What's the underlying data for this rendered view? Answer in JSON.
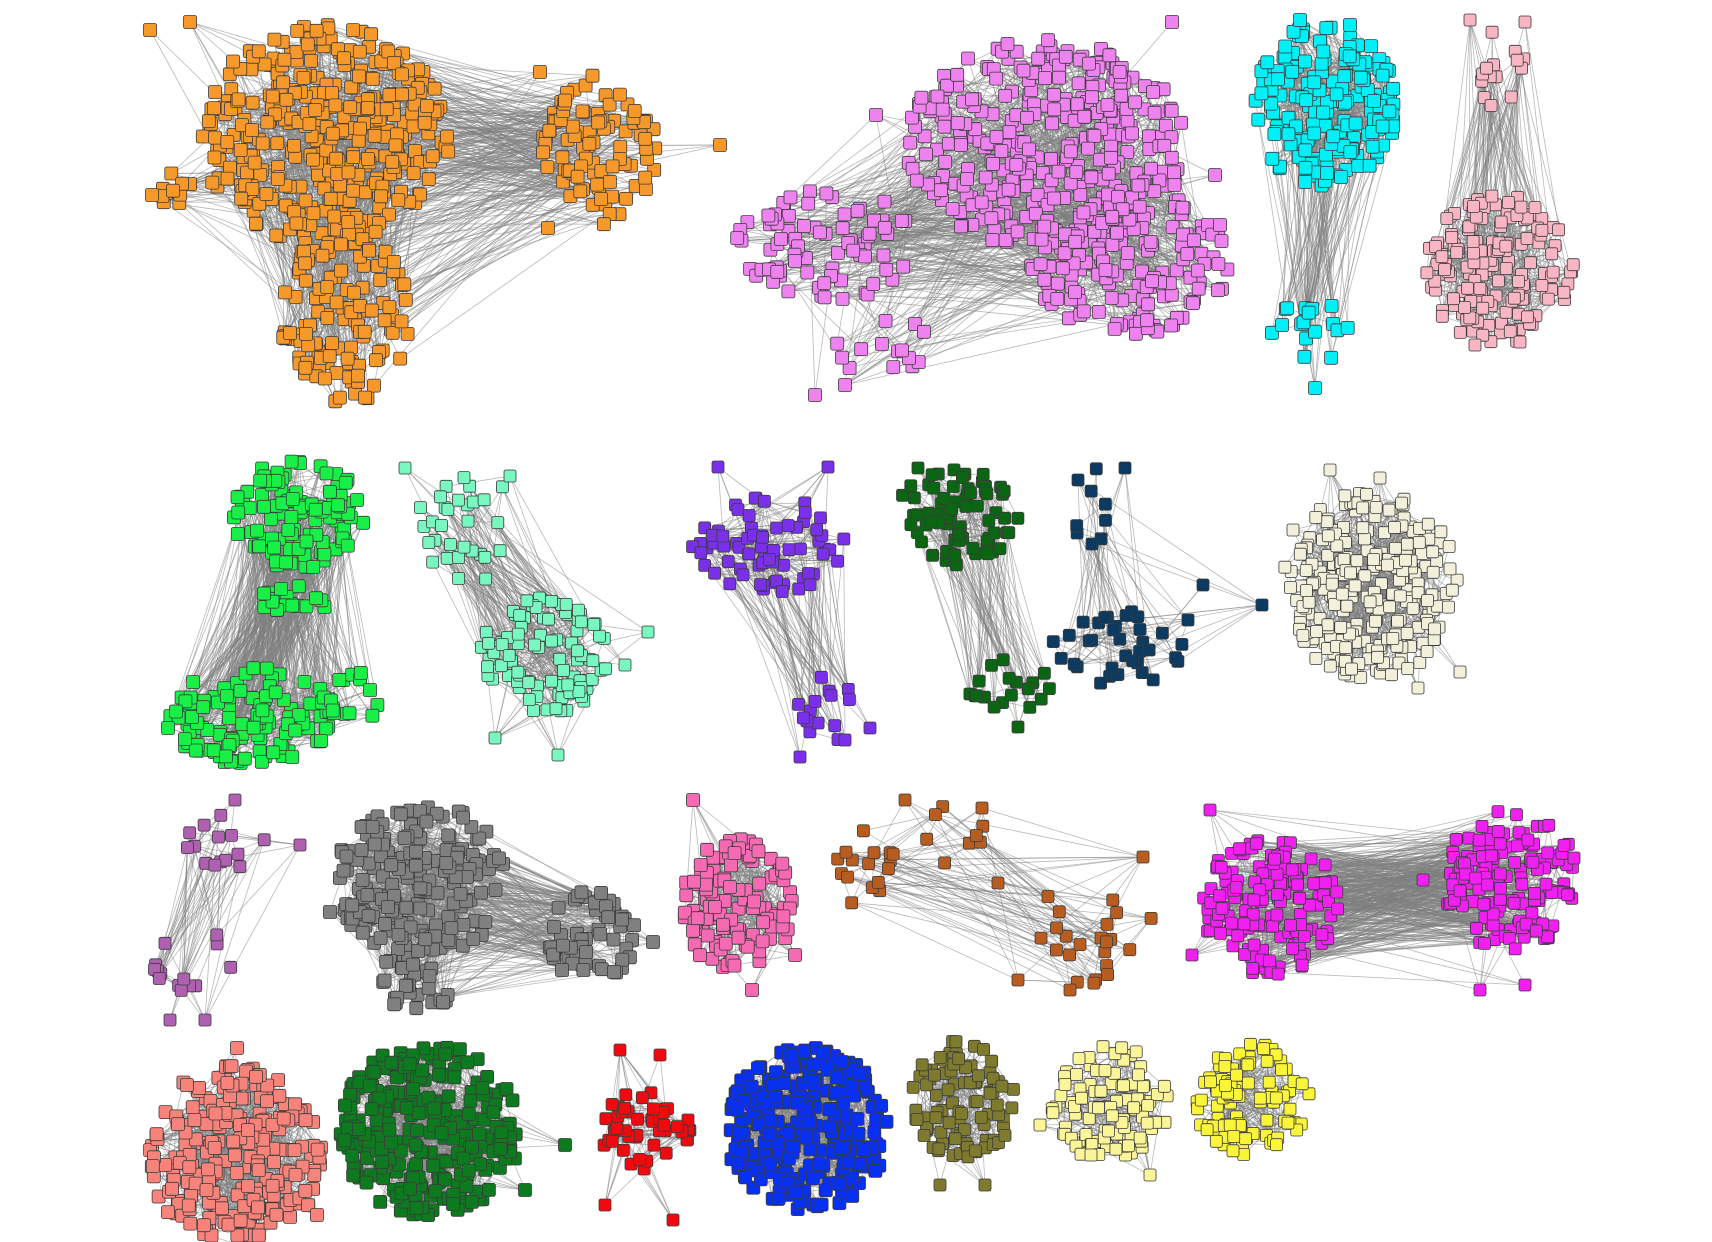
{
  "diagram": {
    "type": "network-communities",
    "node_shape": "square",
    "edge_color": "#808080",
    "node_stroke": "#3a3a3a",
    "communities": [
      {
        "name": "orange",
        "color": "#F7982A"
      },
      {
        "name": "orchid",
        "color": "#EE82EE"
      },
      {
        "name": "cyan",
        "color": "#00F0F8"
      },
      {
        "name": "light-pink",
        "color": "#F8B6C4"
      },
      {
        "name": "green",
        "color": "#18F048"
      },
      {
        "name": "aquamarine",
        "color": "#78F8C0"
      },
      {
        "name": "purple",
        "color": "#7A30E8"
      },
      {
        "name": "dark-green",
        "color": "#0B6614"
      },
      {
        "name": "navy",
        "color": "#0D3A60"
      },
      {
        "name": "beige",
        "color": "#F2F0DA"
      },
      {
        "name": "mauve",
        "color": "#B060B0"
      },
      {
        "name": "gray",
        "color": "#808080"
      },
      {
        "name": "hot-pink",
        "color": "#F66AB4"
      },
      {
        "name": "brown",
        "color": "#B85C20"
      },
      {
        "name": "magenta",
        "color": "#F020F0"
      },
      {
        "name": "salmon",
        "color": "#F8837A"
      },
      {
        "name": "forest-green",
        "color": "#0E7A20"
      },
      {
        "name": "red",
        "color": "#F00A10"
      },
      {
        "name": "blue",
        "color": "#0830F0"
      },
      {
        "name": "olive",
        "color": "#7E7A2E"
      },
      {
        "name": "pale-yellow",
        "color": "#FBF59A"
      },
      {
        "name": "yellow",
        "color": "#FBF53A"
      }
    ]
  }
}
